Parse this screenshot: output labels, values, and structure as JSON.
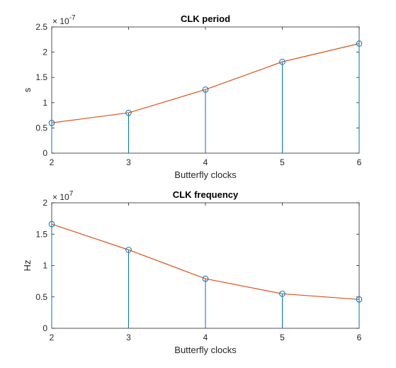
{
  "chart_data": [
    {
      "type": "line",
      "title": "CLK period",
      "xlabel": "Butterfly clocks",
      "ylabel": "s",
      "exponent_base": "× 10",
      "exponent": "-7",
      "x": [
        2,
        3,
        4,
        5,
        6
      ],
      "xlim": [
        2,
        6
      ],
      "ylim": [
        0,
        2.5
      ],
      "xticks": [
        "2",
        "3",
        "4",
        "5",
        "6"
      ],
      "yticks": [
        "0",
        "0.5",
        "1",
        "1.5",
        "2",
        "2.5"
      ],
      "ytick_values": [
        0,
        0.5,
        1,
        1.5,
        2,
        2.5
      ],
      "series": [
        {
          "kind": "stem",
          "color": "#0072BD",
          "values": [
            0.6,
            0.8,
            1.26,
            1.81,
            2.17
          ]
        },
        {
          "kind": "line",
          "color": "#D95319",
          "values": [
            0.6,
            0.8,
            1.26,
            1.81,
            2.17
          ]
        }
      ],
      "grid": false
    },
    {
      "type": "line",
      "title": "CLK frequency",
      "xlabel": "Butterfly clocks",
      "ylabel": "Hz",
      "exponent_base": "× 10",
      "exponent": "7",
      "x": [
        2,
        3,
        4,
        5,
        6
      ],
      "xlim": [
        2,
        6
      ],
      "ylim": [
        0,
        2
      ],
      "xticks": [
        "2",
        "3",
        "4",
        "5",
        "6"
      ],
      "yticks": [
        "0",
        "0.5",
        "1",
        "1.5",
        "2"
      ],
      "ytick_values": [
        0,
        0.5,
        1,
        1.5,
        2
      ],
      "series": [
        {
          "kind": "stem",
          "color": "#0072BD",
          "values": [
            1.66,
            1.25,
            0.79,
            0.55,
            0.46
          ]
        },
        {
          "kind": "line",
          "color": "#D95319",
          "values": [
            1.66,
            1.25,
            0.79,
            0.55,
            0.46
          ]
        }
      ],
      "grid": false
    }
  ]
}
